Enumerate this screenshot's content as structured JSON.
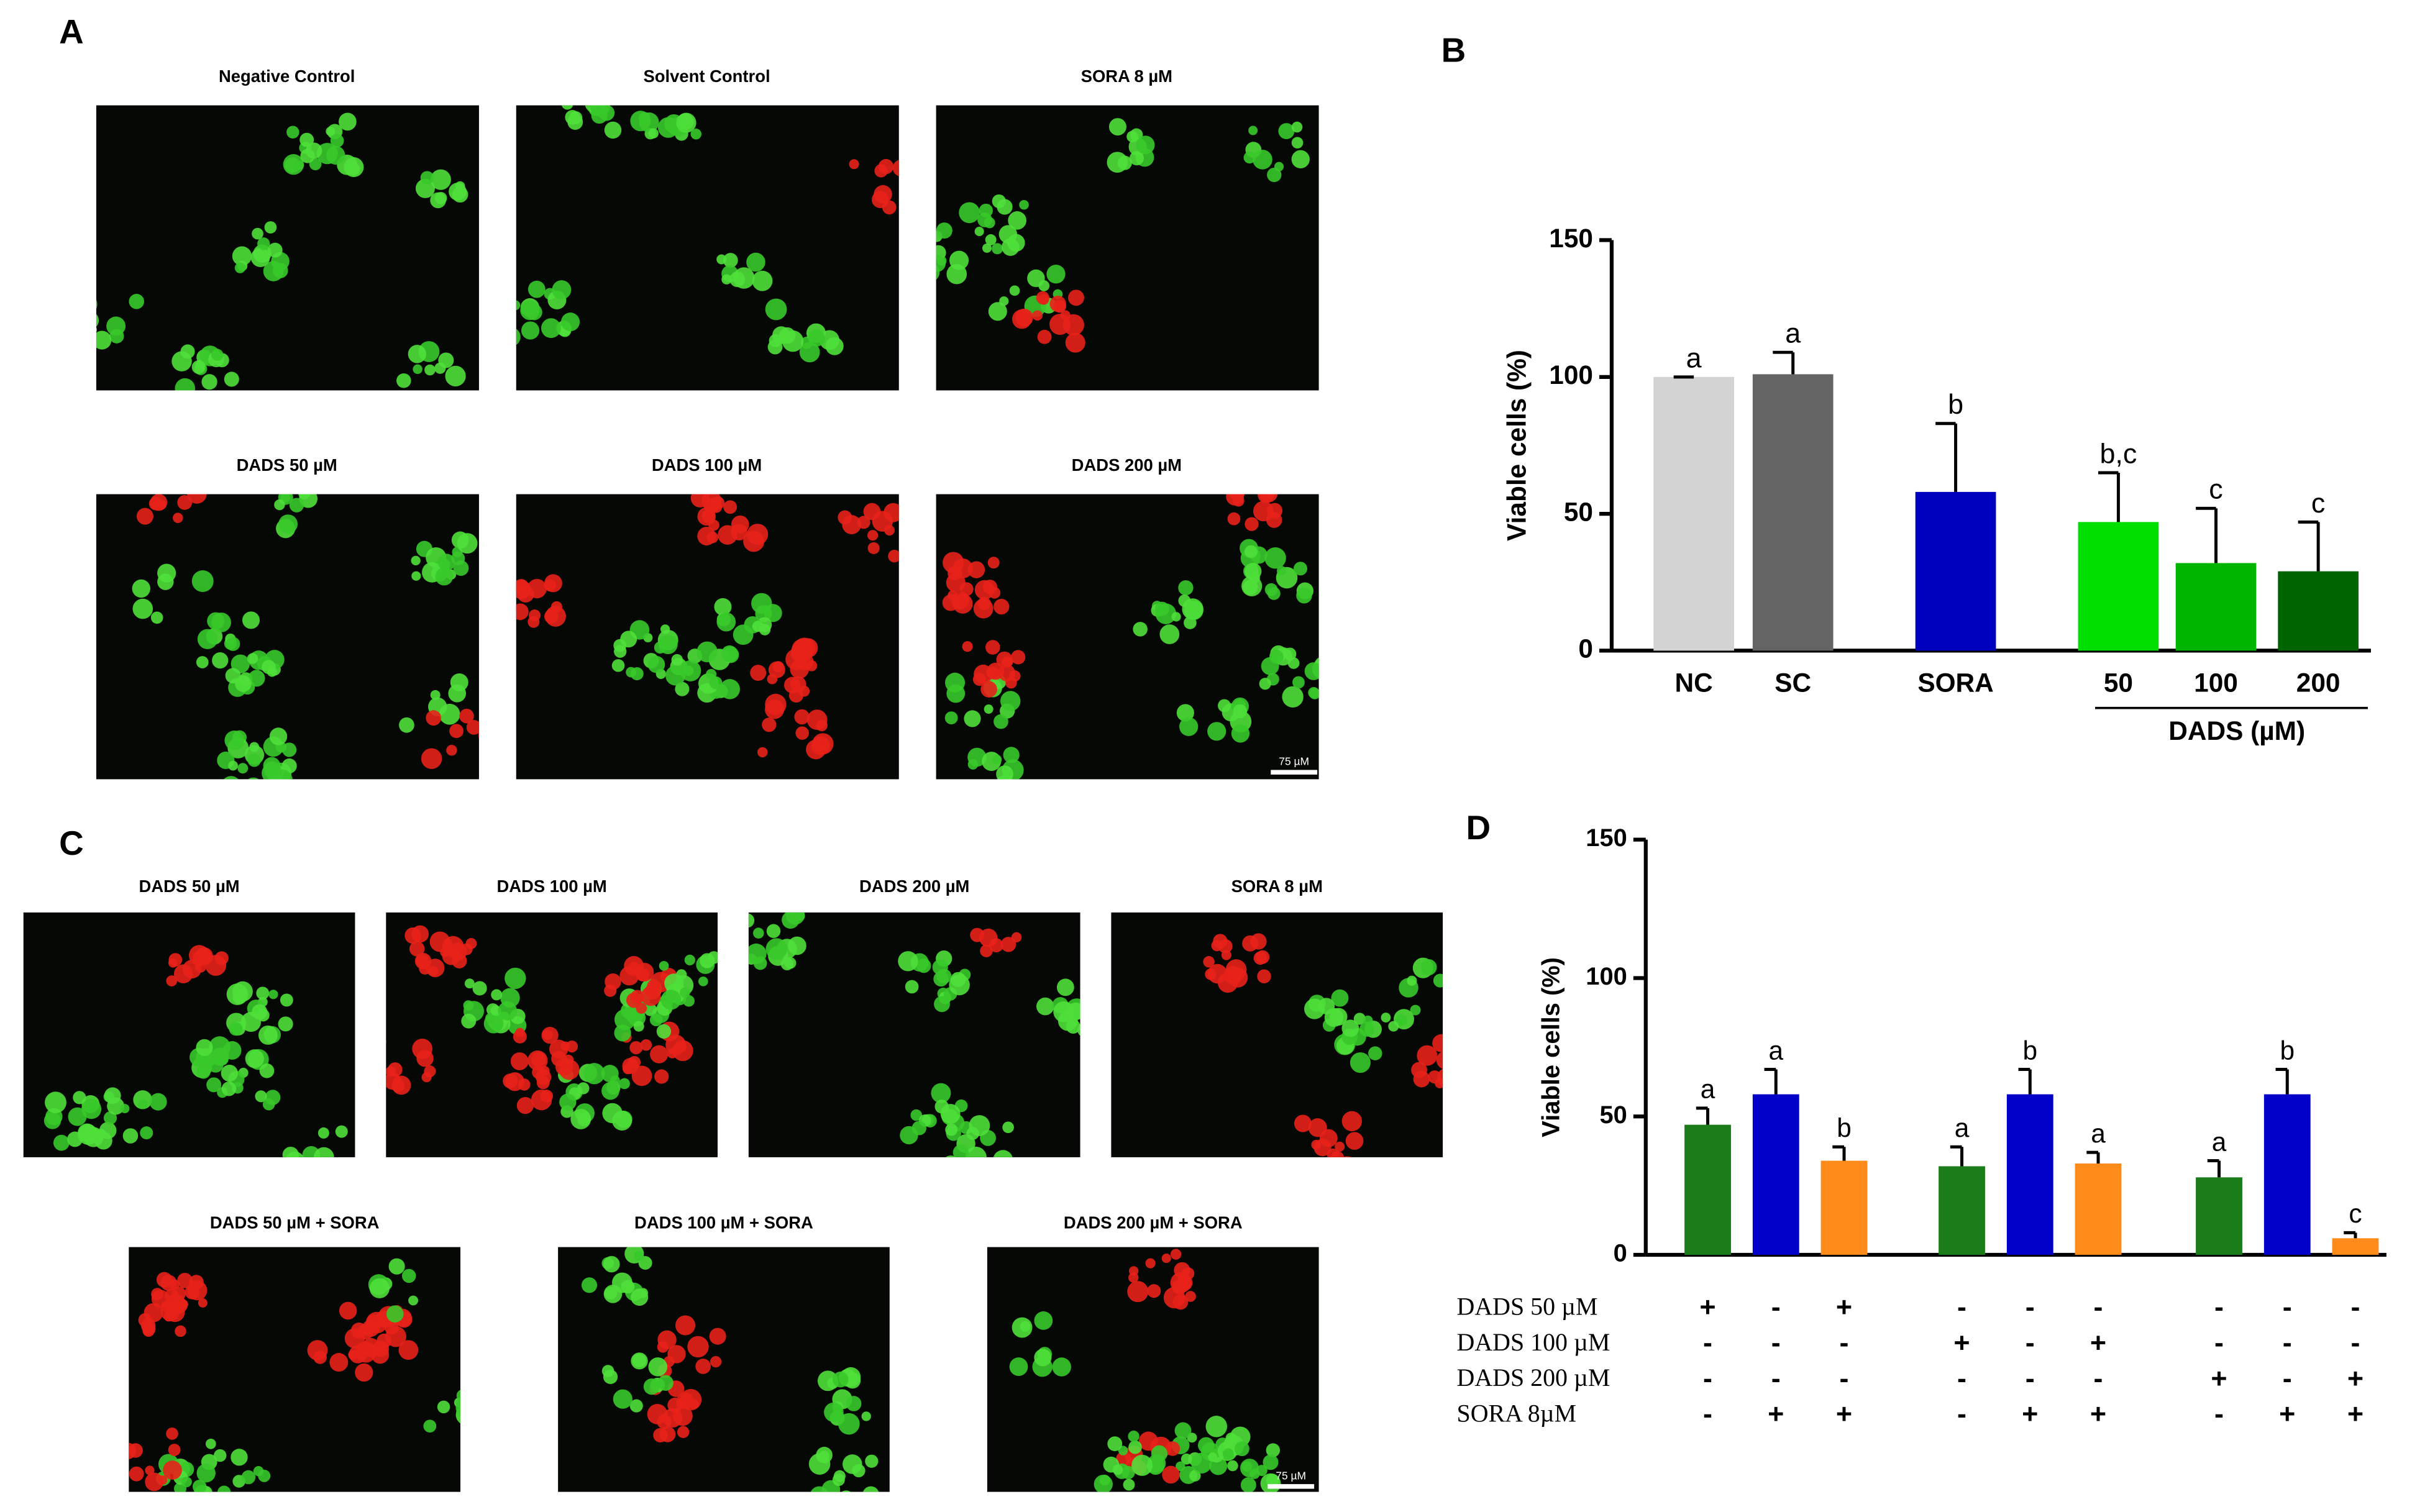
{
  "panels": {
    "A": "A",
    "B": "B",
    "C": "C",
    "D": "D"
  },
  "images": {
    "A": [
      "Negative Control",
      "Solvent Control",
      "SORA 8 µM",
      "DADS 50 µM",
      "DADS 100 µM",
      "DADS 200 µM"
    ],
    "C": [
      "DADS 50 µM",
      "DADS 100 µM",
      "DADS 200 µM",
      "SORA 8 µM",
      "DADS 50 µM + SORA",
      "DADS 100 µM + SORA",
      "DADS 200 µM + SORA"
    ]
  },
  "scale_bar": "75 µM",
  "chart_data": [
    {
      "type": "bar",
      "ylabel": "Viable cells (%)",
      "categories": [
        "NC",
        "SC",
        "SORA",
        "50",
        "100",
        "200"
      ],
      "group_label": "DADS (µM)",
      "values": [
        100,
        101,
        58,
        47,
        32,
        29
      ],
      "errors": [
        0,
        8,
        25,
        18,
        20,
        18
      ],
      "annotations": [
        "a",
        "a",
        "b",
        "b,c",
        "c",
        "c"
      ],
      "colors": [
        "#d3d3d3",
        "#646464",
        "#0000bf",
        "#00e000",
        "#00b400",
        "#006400"
      ],
      "ylim": [
        0,
        150
      ],
      "yticks": [
        0,
        50,
        100,
        150
      ]
    },
    {
      "type": "bar",
      "ylabel": "Viable cells (%)",
      "series": [
        {
          "color": "#1a7d1a",
          "values": [
            47,
            32,
            28
          ],
          "errors": [
            6,
            7,
            6
          ],
          "annotations": [
            "a",
            "a",
            "a"
          ]
        },
        {
          "color": "#0000c8",
          "values": [
            58,
            58,
            58
          ],
          "errors": [
            9,
            9,
            9
          ],
          "annotations": [
            "a",
            "b",
            "b"
          ]
        },
        {
          "color": "#ff8c1a",
          "values": [
            34,
            33,
            6
          ],
          "errors": [
            5,
            4,
            2
          ],
          "annotations": [
            "b",
            "a",
            "c"
          ]
        }
      ],
      "treatments": [
        {
          "label": "DADS 50 µM",
          "signs": [
            "+",
            "-",
            "+",
            "-",
            "-",
            "-",
            "-",
            "-",
            "-"
          ]
        },
        {
          "label": "DADS 100 µM",
          "signs": [
            "-",
            "-",
            "-",
            "+",
            "-",
            "+",
            "-",
            "-",
            "-"
          ]
        },
        {
          "label": "DADS 200 µM",
          "signs": [
            "-",
            "-",
            "-",
            "-",
            "-",
            "-",
            "+",
            "-",
            "+"
          ]
        },
        {
          "label": "SORA 8µM",
          "signs": [
            "-",
            "+",
            "+",
            "-",
            "+",
            "+",
            "-",
            "+",
            "+"
          ]
        }
      ],
      "ylim": [
        0,
        150
      ],
      "yticks": [
        0,
        50,
        100,
        150
      ]
    }
  ]
}
